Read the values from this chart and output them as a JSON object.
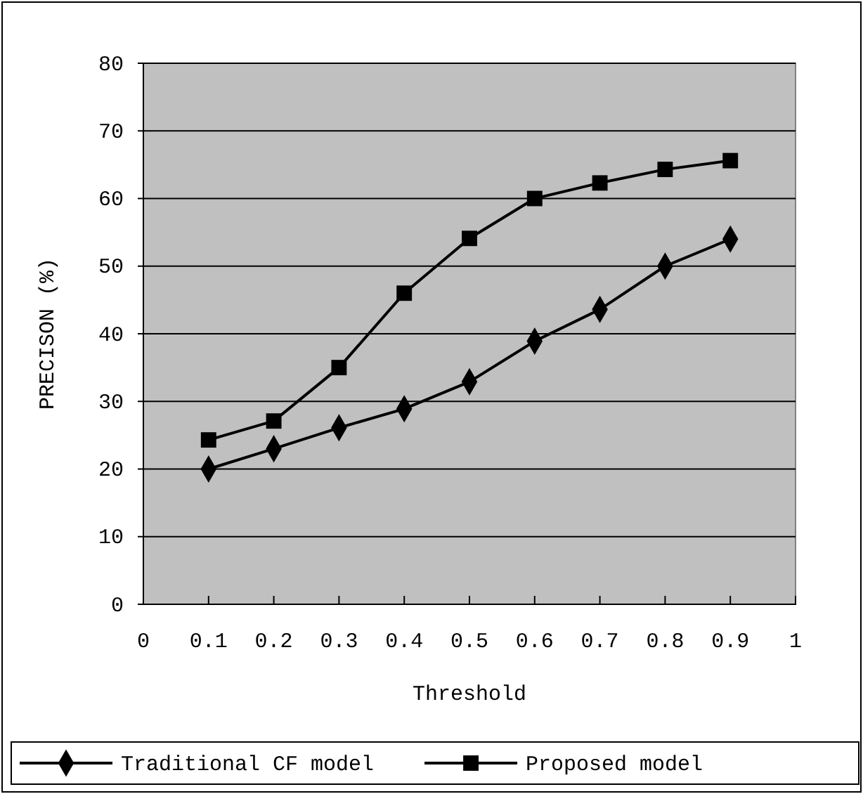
{
  "chart_data": {
    "type": "line",
    "xlabel": "Threshold",
    "ylabel": "PRECISON (%)",
    "x": [
      0.1,
      0.2,
      0.3,
      0.4,
      0.5,
      0.6,
      0.7,
      0.8,
      0.9
    ],
    "series": [
      {
        "name": "Traditional CF model",
        "color": "#000000",
        "marker": "diamond",
        "values": [
          20,
          23,
          26.1,
          28.9,
          32.9,
          38.9,
          43.6,
          50,
          54
        ]
      },
      {
        "name": "Proposed model",
        "color": "#000000",
        "marker": "square",
        "values": [
          24.3,
          27.1,
          35,
          46,
          54.1,
          60,
          62.3,
          64.3,
          65.6
        ]
      }
    ],
    "xlim": [
      0,
      1
    ],
    "xticks": [
      0,
      0.1,
      0.2,
      0.3,
      0.4,
      0.5,
      0.6,
      0.7,
      0.8,
      0.9,
      1
    ],
    "ylim": [
      0,
      80
    ],
    "yticks": [
      0,
      10,
      20,
      30,
      40,
      50,
      60,
      70,
      80
    ],
    "grid": "y",
    "legend": "bottom",
    "line_style": "solid"
  }
}
